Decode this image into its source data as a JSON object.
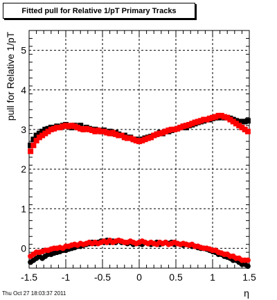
{
  "title": "Fitted pull for Relative 1/pT  Primary Tracks",
  "footer": "Thu Oct 27 18:03:37 2011",
  "chart_data": {
    "type": "scatter",
    "xlabel": "η",
    "ylabel": "pull for Relative 1/pT",
    "xlim": [
      -1.5,
      1.5
    ],
    "ylim": [
      -0.5,
      5.5
    ],
    "x_ticks": [
      "-1.5",
      "-1",
      "-0.5",
      "0",
      "0.5",
      "1",
      "1.5"
    ],
    "y_ticks": [
      "0",
      "1",
      "2",
      "3",
      "4",
      "5"
    ],
    "grid": true,
    "legend": "none",
    "series": [
      {
        "color": "#000000",
        "marker": "square",
        "x": [
          -1.48,
          -1.44,
          -1.4,
          -1.36,
          -1.32,
          -1.28,
          -1.24,
          -1.2,
          -1.16,
          -1.12,
          -1.08,
          -1.04,
          -1.0,
          -0.96,
          -0.92,
          -0.88,
          -0.84,
          -0.8,
          -0.76,
          -0.72,
          -0.68,
          -0.64,
          -0.6,
          -0.56,
          -0.52,
          -0.48,
          -0.44,
          -0.4,
          -0.36,
          -0.32,
          -0.28,
          -0.24,
          -0.2,
          -0.16,
          -0.12,
          -0.08,
          -0.04,
          0.0,
          0.04,
          0.08,
          0.12,
          0.16,
          0.2,
          0.24,
          0.28,
          0.32,
          0.36,
          0.4,
          0.44,
          0.48,
          0.52,
          0.56,
          0.6,
          0.64,
          0.68,
          0.72,
          0.76,
          0.8,
          0.84,
          0.88,
          0.92,
          0.96,
          1.0,
          1.04,
          1.08,
          1.12,
          1.16,
          1.2,
          1.24,
          1.28,
          1.32,
          1.36,
          1.4,
          1.44,
          1.48
        ],
        "y": [
          2.6,
          2.75,
          2.85,
          2.9,
          2.95,
          3.0,
          3.02,
          3.05,
          3.05,
          3.08,
          3.05,
          3.1,
          3.12,
          3.08,
          3.05,
          3.1,
          3.05,
          3.1,
          3.0,
          3.05,
          3.02,
          3.0,
          3.0,
          2.98,
          2.95,
          2.98,
          2.92,
          2.95,
          2.9,
          2.92,
          2.88,
          2.85,
          2.85,
          2.8,
          2.8,
          2.75,
          2.75,
          2.72,
          2.75,
          2.78,
          2.8,
          2.82,
          2.85,
          2.88,
          2.92,
          2.9,
          2.95,
          2.95,
          2.98,
          3.0,
          3.02,
          3.05,
          3.08,
          3.05,
          3.1,
          3.12,
          3.15,
          3.18,
          3.2,
          3.22,
          3.25,
          3.25,
          3.28,
          3.3,
          3.3,
          3.32,
          3.3,
          3.3,
          3.28,
          3.25,
          3.22,
          3.2,
          3.2,
          3.2,
          3.22
        ]
      },
      {
        "color": "#ff0000",
        "marker": "square",
        "x": [
          -1.48,
          -1.44,
          -1.4,
          -1.36,
          -1.32,
          -1.28,
          -1.24,
          -1.2,
          -1.16,
          -1.12,
          -1.08,
          -1.04,
          -1.0,
          -0.96,
          -0.92,
          -0.88,
          -0.84,
          -0.8,
          -0.76,
          -0.72,
          -0.68,
          -0.64,
          -0.6,
          -0.56,
          -0.52,
          -0.48,
          -0.44,
          -0.4,
          -0.36,
          -0.32,
          -0.28,
          -0.24,
          -0.2,
          -0.16,
          -0.12,
          -0.08,
          -0.04,
          0.0,
          0.04,
          0.08,
          0.12,
          0.16,
          0.2,
          0.24,
          0.28,
          0.32,
          0.36,
          0.4,
          0.44,
          0.48,
          0.52,
          0.56,
          0.6,
          0.64,
          0.68,
          0.72,
          0.76,
          0.8,
          0.84,
          0.88,
          0.92,
          0.96,
          1.0,
          1.04,
          1.08,
          1.12,
          1.16,
          1.2,
          1.24,
          1.28,
          1.32,
          1.36,
          1.4,
          1.44,
          1.48
        ],
        "y": [
          2.45,
          2.6,
          2.72,
          2.8,
          2.85,
          2.9,
          2.95,
          3.0,
          3.02,
          3.05,
          3.05,
          3.08,
          3.1,
          3.08,
          3.1,
          3.08,
          3.05,
          3.02,
          3.0,
          3.02,
          3.0,
          2.98,
          2.95,
          2.98,
          2.95,
          2.95,
          2.92,
          2.9,
          2.92,
          2.88,
          2.85,
          2.85,
          2.8,
          2.78,
          2.78,
          2.75,
          2.72,
          2.7,
          2.72,
          2.75,
          2.78,
          2.8,
          2.85,
          2.88,
          2.9,
          2.92,
          2.95,
          2.98,
          3.0,
          3.0,
          3.02,
          3.05,
          3.08,
          3.1,
          3.12,
          3.15,
          3.18,
          3.2,
          3.22,
          3.25,
          3.25,
          3.28,
          3.3,
          3.32,
          3.35,
          3.35,
          3.32,
          3.3,
          3.25,
          3.2,
          3.15,
          3.1,
          3.05,
          3.0,
          2.95
        ]
      },
      {
        "color": "#000000",
        "marker": "circle",
        "x": [
          -1.48,
          -1.44,
          -1.4,
          -1.36,
          -1.32,
          -1.28,
          -1.24,
          -1.2,
          -1.16,
          -1.12,
          -1.08,
          -1.04,
          -1.0,
          -0.96,
          -0.92,
          -0.88,
          -0.84,
          -0.8,
          -0.76,
          -0.72,
          -0.68,
          -0.64,
          -0.6,
          -0.56,
          -0.52,
          -0.48,
          -0.44,
          -0.4,
          -0.36,
          -0.32,
          -0.28,
          -0.24,
          -0.2,
          -0.16,
          -0.12,
          -0.08,
          -0.04,
          0.0,
          0.04,
          0.08,
          0.12,
          0.16,
          0.2,
          0.24,
          0.28,
          0.32,
          0.36,
          0.4,
          0.44,
          0.48,
          0.52,
          0.56,
          0.6,
          0.64,
          0.68,
          0.72,
          0.76,
          0.8,
          0.84,
          0.88,
          0.92,
          0.96,
          1.0,
          1.04,
          1.08,
          1.12,
          1.16,
          1.2,
          1.24,
          1.28,
          1.32,
          1.36,
          1.4,
          1.44,
          1.48
        ],
        "y": [
          -0.35,
          -0.3,
          -0.25,
          -0.2,
          -0.25,
          -0.2,
          -0.15,
          -0.15,
          -0.12,
          -0.1,
          -0.08,
          -0.05,
          -0.05,
          -0.02,
          0.0,
          0.02,
          0.05,
          0.05,
          0.08,
          0.1,
          0.12,
          0.15,
          0.12,
          0.15,
          0.18,
          0.15,
          0.2,
          0.15,
          0.18,
          0.15,
          0.2,
          0.15,
          0.15,
          0.12,
          0.15,
          0.1,
          0.12,
          0.12,
          0.1,
          0.15,
          0.12,
          0.1,
          0.12,
          0.15,
          0.1,
          0.12,
          0.15,
          0.12,
          0.15,
          0.1,
          0.12,
          0.1,
          0.08,
          0.1,
          0.08,
          0.05,
          0.05,
          0.02,
          0.0,
          0.0,
          -0.02,
          -0.05,
          -0.08,
          -0.1,
          -0.15,
          -0.15,
          -0.2,
          -0.22,
          -0.25,
          -0.3,
          -0.3,
          -0.35,
          -0.4,
          -0.4,
          -0.45
        ]
      },
      {
        "color": "#ff0000",
        "marker": "circle",
        "x": [
          -1.48,
          -1.44,
          -1.4,
          -1.36,
          -1.32,
          -1.28,
          -1.24,
          -1.2,
          -1.16,
          -1.12,
          -1.08,
          -1.04,
          -1.0,
          -0.96,
          -0.92,
          -0.88,
          -0.84,
          -0.8,
          -0.76,
          -0.72,
          -0.68,
          -0.64,
          -0.6,
          -0.56,
          -0.52,
          -0.48,
          -0.44,
          -0.4,
          -0.36,
          -0.32,
          -0.28,
          -0.24,
          -0.2,
          -0.16,
          -0.12,
          -0.08,
          -0.04,
          0.0,
          0.04,
          0.08,
          0.12,
          0.16,
          0.2,
          0.24,
          0.28,
          0.32,
          0.36,
          0.4,
          0.44,
          0.48,
          0.52,
          0.56,
          0.6,
          0.64,
          0.68,
          0.72,
          0.76,
          0.8,
          0.84,
          0.88,
          0.92,
          0.96,
          1.0,
          1.04,
          1.08,
          1.12,
          1.16,
          1.2,
          1.24,
          1.28,
          1.32,
          1.36,
          1.4,
          1.44,
          1.48
        ],
        "y": [
          -0.2,
          -0.15,
          -0.1,
          -0.1,
          -0.08,
          -0.05,
          -0.05,
          -0.02,
          0.0,
          0.0,
          0.02,
          0.0,
          0.05,
          0.05,
          0.08,
          0.1,
          0.08,
          0.12,
          0.1,
          0.12,
          0.15,
          0.12,
          0.15,
          0.12,
          0.15,
          0.18,
          0.15,
          0.2,
          0.15,
          0.18,
          0.2,
          0.18,
          0.15,
          0.15,
          0.18,
          0.15,
          0.12,
          0.15,
          0.18,
          0.15,
          0.12,
          0.15,
          0.12,
          0.1,
          0.15,
          0.12,
          0.15,
          0.1,
          0.12,
          0.15,
          0.12,
          0.1,
          0.12,
          0.1,
          0.08,
          0.1,
          0.05,
          0.05,
          0.02,
          0.0,
          0.0,
          -0.02,
          -0.05,
          -0.05,
          -0.1,
          -0.12,
          -0.15,
          -0.15,
          -0.2,
          -0.2,
          -0.25,
          -0.25,
          -0.3,
          -0.3,
          -0.3
        ]
      }
    ]
  }
}
